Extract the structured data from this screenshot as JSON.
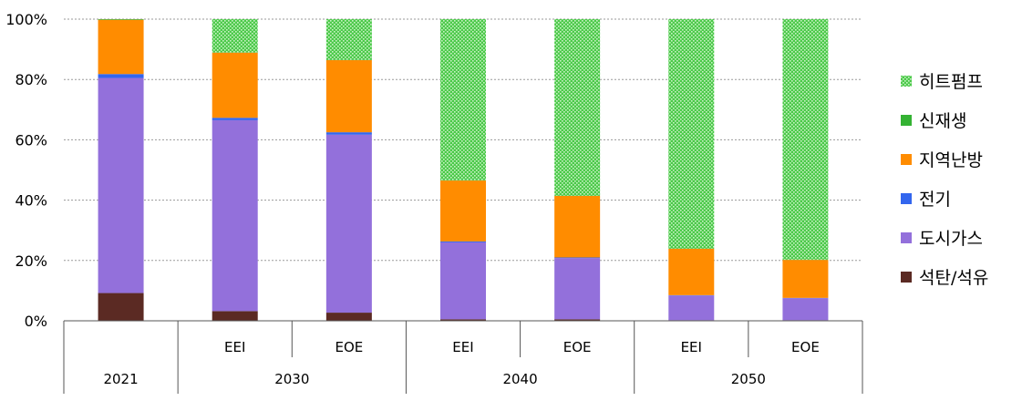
{
  "chart_data": {
    "type": "bar",
    "stacked": true,
    "percent": true,
    "ylim": [
      0,
      100
    ],
    "yticks": [
      "0%",
      "20%",
      "40%",
      "60%",
      "80%",
      "100%"
    ],
    "grid": true,
    "legend_position": "right",
    "categories": [
      "2021",
      "EEI",
      "EOE",
      "EEI",
      "EOE",
      "EEI",
      "EOE"
    ],
    "groups": [
      {
        "label": "2021",
        "span": [
          0,
          0
        ]
      },
      {
        "label": "2030",
        "span": [
          1,
          2
        ]
      },
      {
        "label": "2040",
        "span": [
          3,
          4
        ]
      },
      {
        "label": "2050",
        "span": [
          5,
          6
        ]
      }
    ],
    "series": [
      {
        "name": "석탄/석유",
        "color": "#5b2a23",
        "pattern": false,
        "values": [
          9.2,
          3.2,
          2.7,
          0.5,
          0.5,
          0.2,
          0.2
        ]
      },
      {
        "name": "도시가스",
        "color": "#9370db",
        "pattern": false,
        "values": [
          71.3,
          63.3,
          59.0,
          25.5,
          20.3,
          8.2,
          7.3
        ]
      },
      {
        "name": "전기",
        "color": "#3366ee",
        "pattern": false,
        "values": [
          1.3,
          0.8,
          0.8,
          0.3,
          0.2,
          0.1,
          0.1
        ]
      },
      {
        "name": "지역난방",
        "color": "#ff8c00",
        "pattern": false,
        "values": [
          18.0,
          21.6,
          23.9,
          20.2,
          20.4,
          15.4,
          12.6
        ]
      },
      {
        "name": "신재생",
        "color": "#34b233",
        "pattern": false,
        "values": [
          0.2,
          0.1,
          0.1,
          0.1,
          0.1,
          0.1,
          0.1
        ]
      },
      {
        "name": "히트펌프",
        "color": "#5fd35a",
        "pattern": true,
        "values": [
          0.0,
          11.0,
          13.5,
          53.4,
          58.5,
          76.0,
          79.7
        ]
      }
    ],
    "legend_order": [
      "히트펌프",
      "신재생",
      "지역난방",
      "전기",
      "도시가스",
      "석탄/석유"
    ]
  }
}
